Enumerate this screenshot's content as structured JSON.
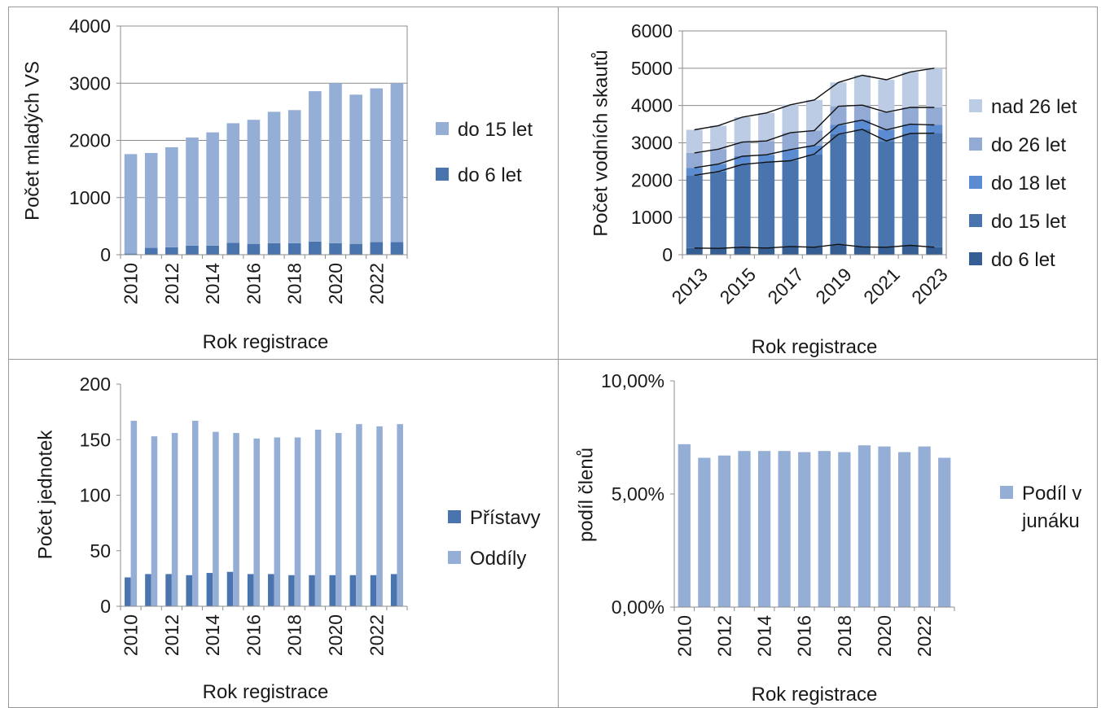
{
  "colors": {
    "light": "#95aed6",
    "dark": "#4a74ad",
    "c_over26": "#bccce4",
    "c_26": "#93abd4",
    "c_18": "#5b8bd0",
    "c_15": "#4a74ad",
    "c_6": "#355f94"
  },
  "chart_data": [
    {
      "type": "bar",
      "stacked": true,
      "x": [
        2010,
        2011,
        2012,
        2013,
        2014,
        2015,
        2016,
        2017,
        2018,
        2019,
        2020,
        2021,
        2022,
        2023
      ],
      "x_tick_labels": [
        "2010",
        "2012",
        "2014",
        "2016",
        "2018",
        "2020",
        "2022"
      ],
      "series": [
        {
          "name": "do 6 let",
          "values": [
            20,
            120,
            130,
            160,
            160,
            210,
            190,
            200,
            200,
            230,
            200,
            190,
            220,
            220
          ]
        },
        {
          "name": "do 15 let",
          "values": [
            1740,
            1660,
            1750,
            1890,
            1980,
            2090,
            2170,
            2300,
            2330,
            2630,
            2800,
            2610,
            2690,
            2780
          ]
        }
      ],
      "xlabel": "Rok registrace",
      "ylabel": "Počet mladých VS",
      "ylim": [
        0,
        4000
      ],
      "y_ticks": [
        "0",
        "1000",
        "2000",
        "3000",
        "4000"
      ],
      "grid": true,
      "legend": "right"
    },
    {
      "type": "bar",
      "stacked": true,
      "x": [
        2013,
        2014,
        2015,
        2016,
        2017,
        2018,
        2019,
        2020,
        2021,
        2022,
        2023
      ],
      "x_tick_labels": [
        "2013",
        "2015",
        "2017",
        "2019",
        "2021",
        "2023"
      ],
      "series": [
        {
          "name": "do 6 let",
          "values": [
            180,
            170,
            200,
            180,
            220,
            200,
            280,
            210,
            200,
            250,
            200
          ]
        },
        {
          "name": "do 15 let",
          "values": [
            1950,
            2060,
            2220,
            2300,
            2300,
            2500,
            2950,
            3150,
            2850,
            3000,
            3060
          ]
        },
        {
          "name": "do 18 let",
          "values": [
            200,
            200,
            220,
            200,
            300,
            230,
            250,
            250,
            300,
            250,
            220
          ]
        },
        {
          "name": "do 26 let",
          "values": [
            400,
            400,
            380,
            370,
            450,
            400,
            500,
            400,
            470,
            450,
            470
          ]
        },
        {
          "name": "nad 26 let",
          "values": [
            620,
            630,
            670,
            750,
            750,
            820,
            640,
            800,
            870,
            950,
            1050
          ]
        }
      ],
      "xlabel": "Rok registrace",
      "ylabel": "Počet vodních skautů",
      "ylim": [
        0,
        6000
      ],
      "y_ticks": [
        "0",
        "1000",
        "2000",
        "3000",
        "4000",
        "5000",
        "6000"
      ],
      "grid": true,
      "series_lines": true,
      "legend": "right"
    },
    {
      "type": "bar",
      "x": [
        2010,
        2011,
        2012,
        2013,
        2014,
        2015,
        2016,
        2017,
        2018,
        2019,
        2020,
        2021,
        2022,
        2023
      ],
      "x_tick_labels": [
        "2010",
        "2012",
        "2014",
        "2016",
        "2018",
        "2020",
        "2022"
      ],
      "series": [
        {
          "name": "Přístavy",
          "values": [
            26,
            29,
            29,
            28,
            30,
            31,
            29,
            29,
            28,
            28,
            28,
            28,
            28,
            29
          ]
        },
        {
          "name": "Oddíly",
          "values": [
            167,
            153,
            156,
            167,
            157,
            156,
            151,
            152,
            152,
            159,
            156,
            164,
            162,
            164
          ]
        }
      ],
      "xlabel": "Rok registrace",
      "ylabel": "Počet jednotek",
      "ylim": [
        0,
        200
      ],
      "y_ticks": [
        "0",
        "50",
        "100",
        "150",
        "200"
      ],
      "grid": false,
      "legend": "right"
    },
    {
      "type": "bar",
      "x": [
        2010,
        2011,
        2012,
        2013,
        2014,
        2015,
        2016,
        2017,
        2018,
        2019,
        2020,
        2021,
        2022,
        2023
      ],
      "x_tick_labels": [
        "2010",
        "2012",
        "2014",
        "2016",
        "2018",
        "2020",
        "2022"
      ],
      "series": [
        {
          "name": "Podíl v junáku",
          "name_lines": [
            "Podíl v",
            "junáku"
          ],
          "values": [
            7.2,
            6.6,
            6.7,
            6.9,
            6.9,
            6.9,
            6.85,
            6.9,
            6.85,
            7.15,
            7.1,
            6.85,
            7.1,
            6.6
          ]
        }
      ],
      "xlabel": "Rok registrace",
      "ylabel": "podíl členů",
      "ylim": [
        0,
        10
      ],
      "y_ticks": [
        "0,00%",
        "5,00%",
        "10,00%"
      ],
      "grid": false,
      "legend": "right"
    }
  ]
}
